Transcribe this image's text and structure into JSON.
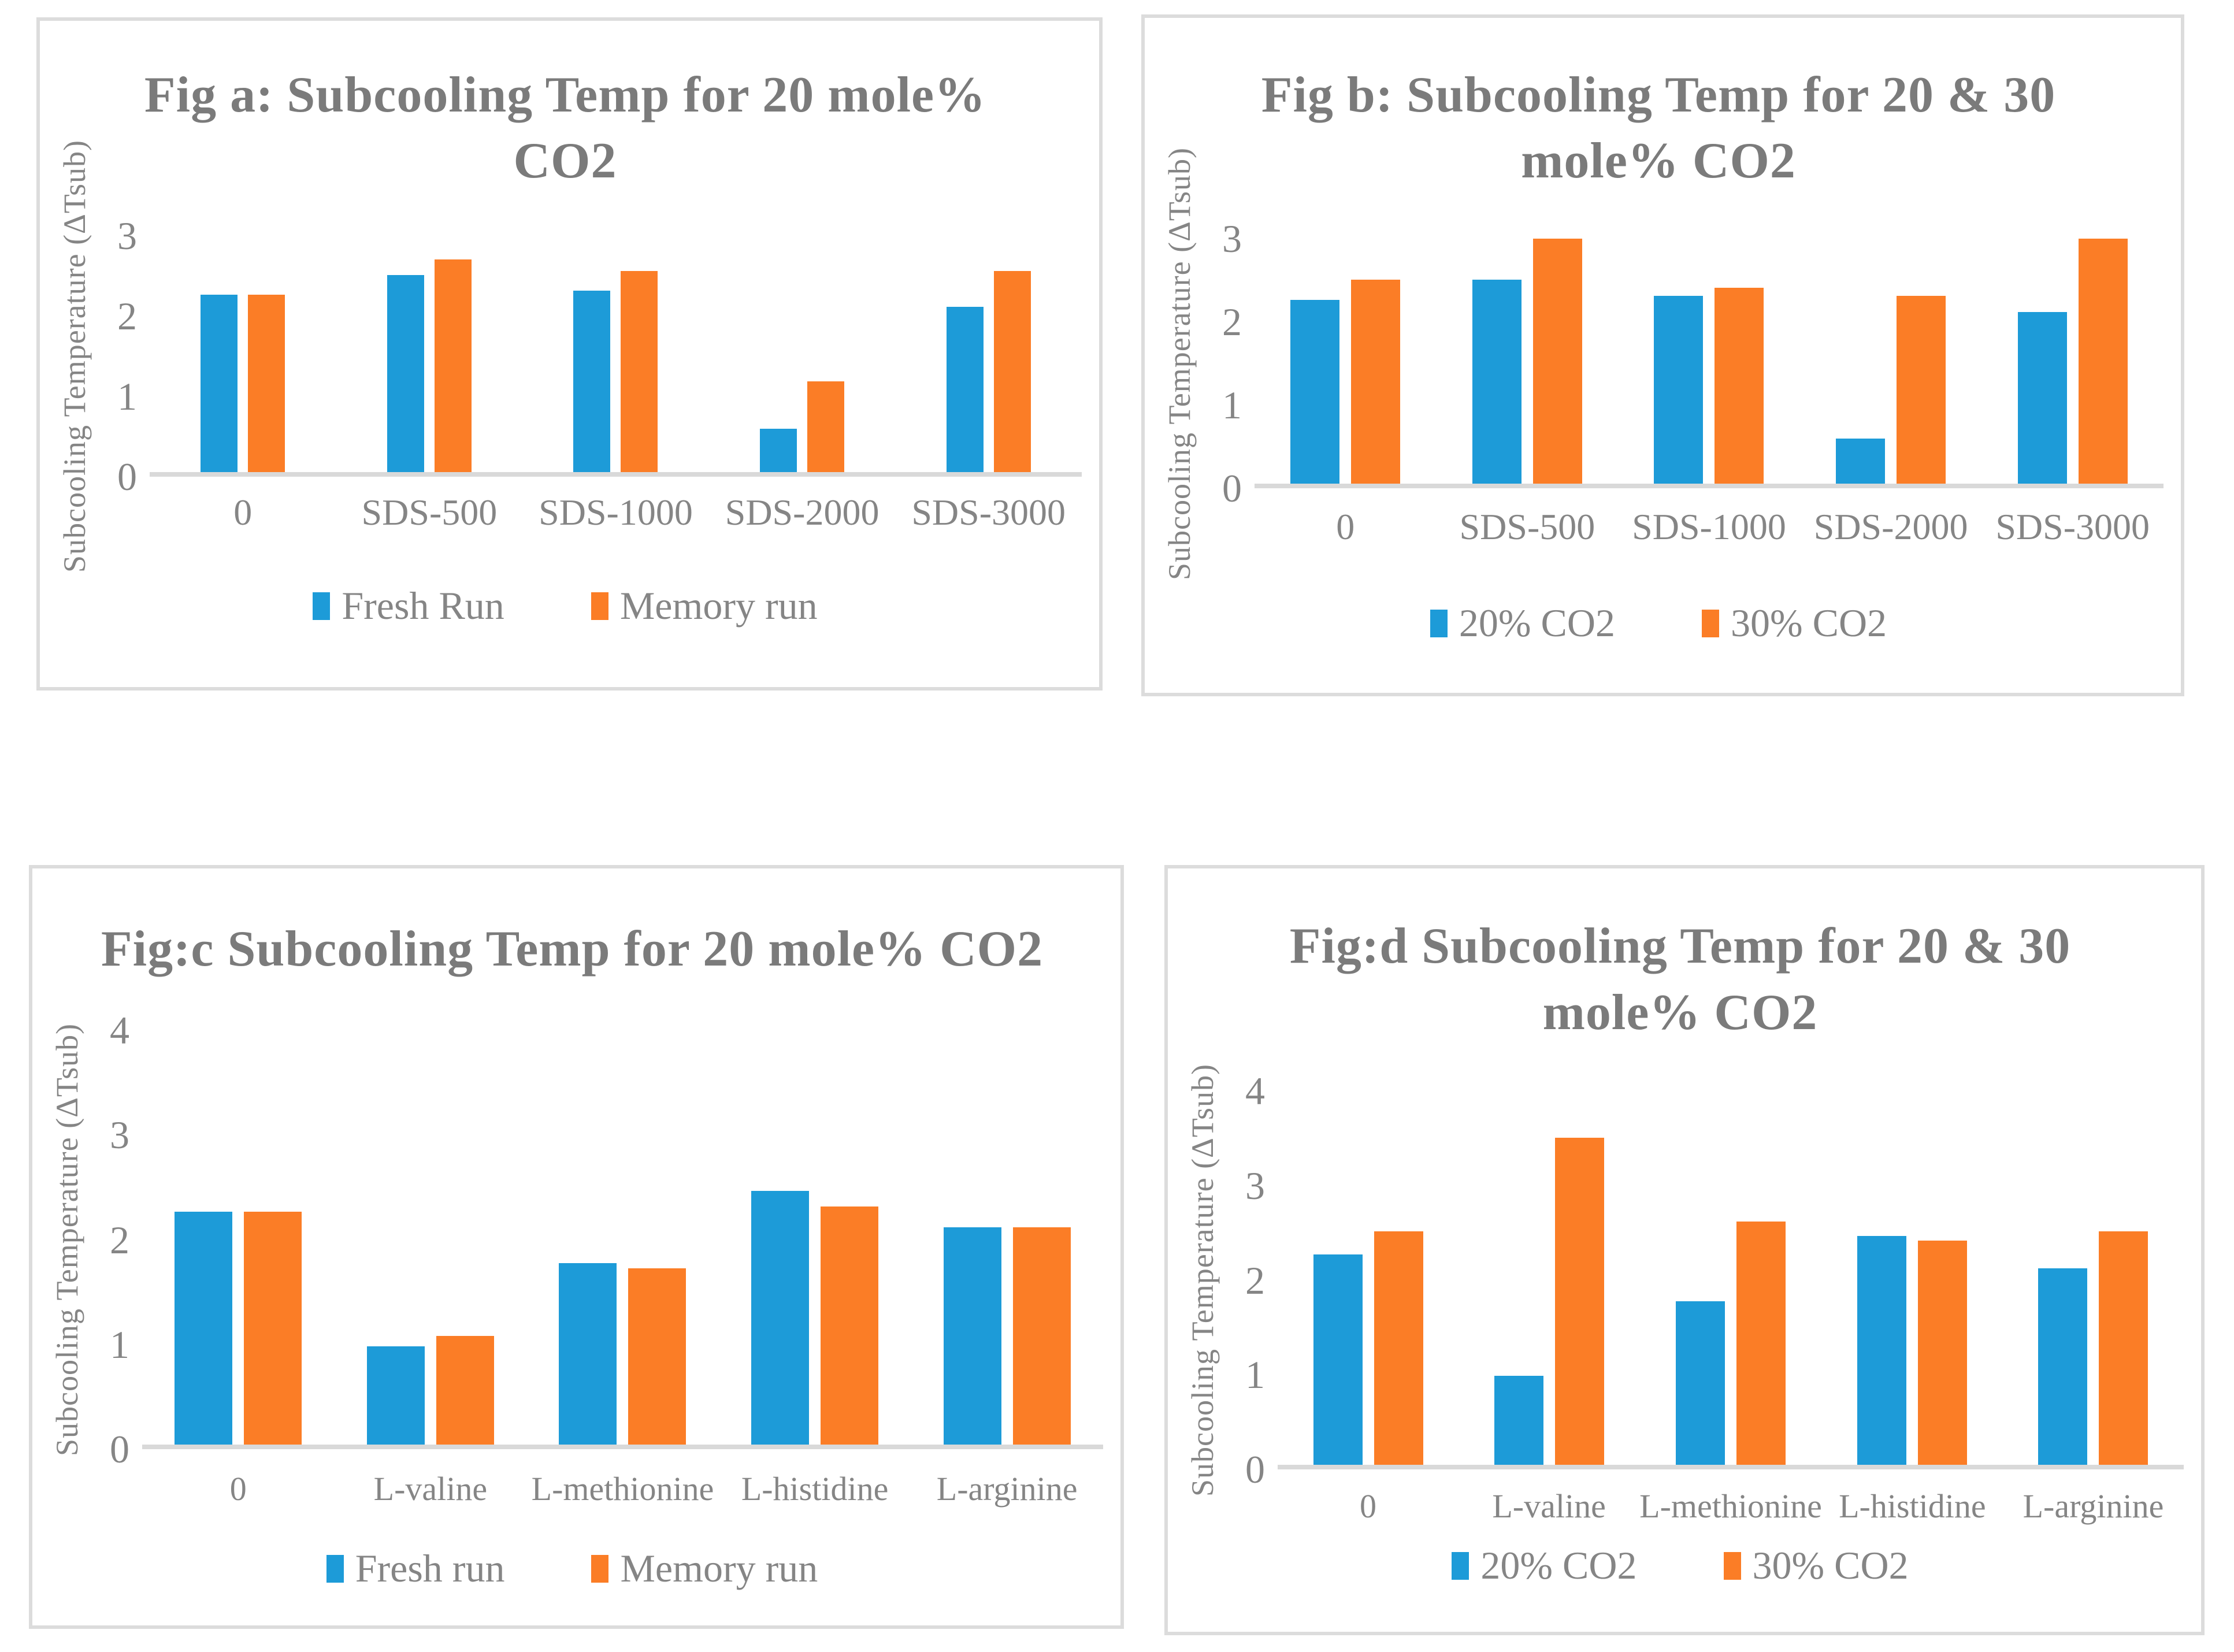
{
  "figure": {
    "background": "#ffffff"
  },
  "colors": {
    "series_blue": "#1D9BD8",
    "series_orange": "#FB7D26",
    "title_text": "#7B7B7B",
    "label_text": "#858585",
    "panel_border": "#DCDCDC",
    "axis_baseline": "#D9D9D9"
  },
  "chart_data": [
    {
      "type": "bar",
      "title": "Fig a: Subcooling Temp for 20 mole% CO2",
      "ylabel": "Subcooling Temperature (ΔTsub)",
      "xlabel": "",
      "ylim": [
        0,
        3
      ],
      "yticks": [
        0,
        1,
        2,
        3
      ],
      "grid": false,
      "legend_position": "bottom",
      "categories": [
        "0",
        "SDS-500",
        "SDS-1000",
        "SDS-2000",
        "SDS-3000"
      ],
      "series": [
        {
          "name": "Fresh Run",
          "color": "#1D9BD8",
          "values": [
            2.25,
            2.5,
            2.3,
            0.55,
            2.1
          ]
        },
        {
          "name": "Memory run",
          "color": "#FB7D26",
          "values": [
            2.25,
            2.7,
            2.55,
            1.15,
            2.55
          ]
        }
      ]
    },
    {
      "type": "bar",
      "title": "Fig b: Subcooling Temp for 20 & 30 mole% CO2",
      "ylabel": "Subcooling Temperature (ΔTsub)",
      "xlabel": "",
      "ylim": [
        0,
        3
      ],
      "yticks": [
        0,
        1,
        2,
        3
      ],
      "grid": false,
      "legend_position": "bottom",
      "categories": [
        "0",
        "SDS-500",
        "SDS-1000",
        "SDS-2000",
        "SDS-3000"
      ],
      "series": [
        {
          "name": "20% CO2",
          "color": "#1D9BD8",
          "values": [
            2.25,
            2.5,
            2.3,
            0.55,
            2.1
          ]
        },
        {
          "name": "30% CO2",
          "color": "#FB7D26",
          "values": [
            2.5,
            3.0,
            2.4,
            2.3,
            3.0
          ]
        }
      ]
    },
    {
      "type": "bar",
      "title": "Fig:c Subcooling Temp for 20 mole% CO2",
      "ylabel": "Subcooling Temperature (ΔTsub)",
      "xlabel": "",
      "ylim": [
        0,
        4
      ],
      "yticks": [
        0,
        1,
        2,
        3,
        4
      ],
      "grid": false,
      "legend_position": "bottom",
      "categories": [
        "0",
        "L-valine",
        "L-methionine",
        "L-histidine",
        "L-arginine"
      ],
      "series": [
        {
          "name": "Fresh run",
          "color": "#1D9BD8",
          "values": [
            2.25,
            0.95,
            1.75,
            2.45,
            2.1
          ]
        },
        {
          "name": "Memory run",
          "color": "#FB7D26",
          "values": [
            2.25,
            1.05,
            1.7,
            2.3,
            2.1
          ]
        }
      ]
    },
    {
      "type": "bar",
      "title": "Fig:d Subcooling Temp for 20 & 30 mole% CO2",
      "ylabel": "Subcooling Temperature (ΔTsub)",
      "xlabel": "",
      "ylim": [
        0,
        4
      ],
      "yticks": [
        0,
        1,
        2,
        3,
        4
      ],
      "grid": false,
      "legend_position": "bottom",
      "categories": [
        "0",
        "L-valine",
        "L-methionine",
        "L-histidine",
        "L-arginine"
      ],
      "series": [
        {
          "name": "20% CO2",
          "color": "#1D9BD8",
          "values": [
            2.25,
            0.95,
            1.75,
            2.45,
            2.1
          ]
        },
        {
          "name": "30% CO2",
          "color": "#FB7D26",
          "values": [
            2.5,
            3.5,
            2.6,
            2.4,
            2.5
          ]
        }
      ]
    }
  ]
}
